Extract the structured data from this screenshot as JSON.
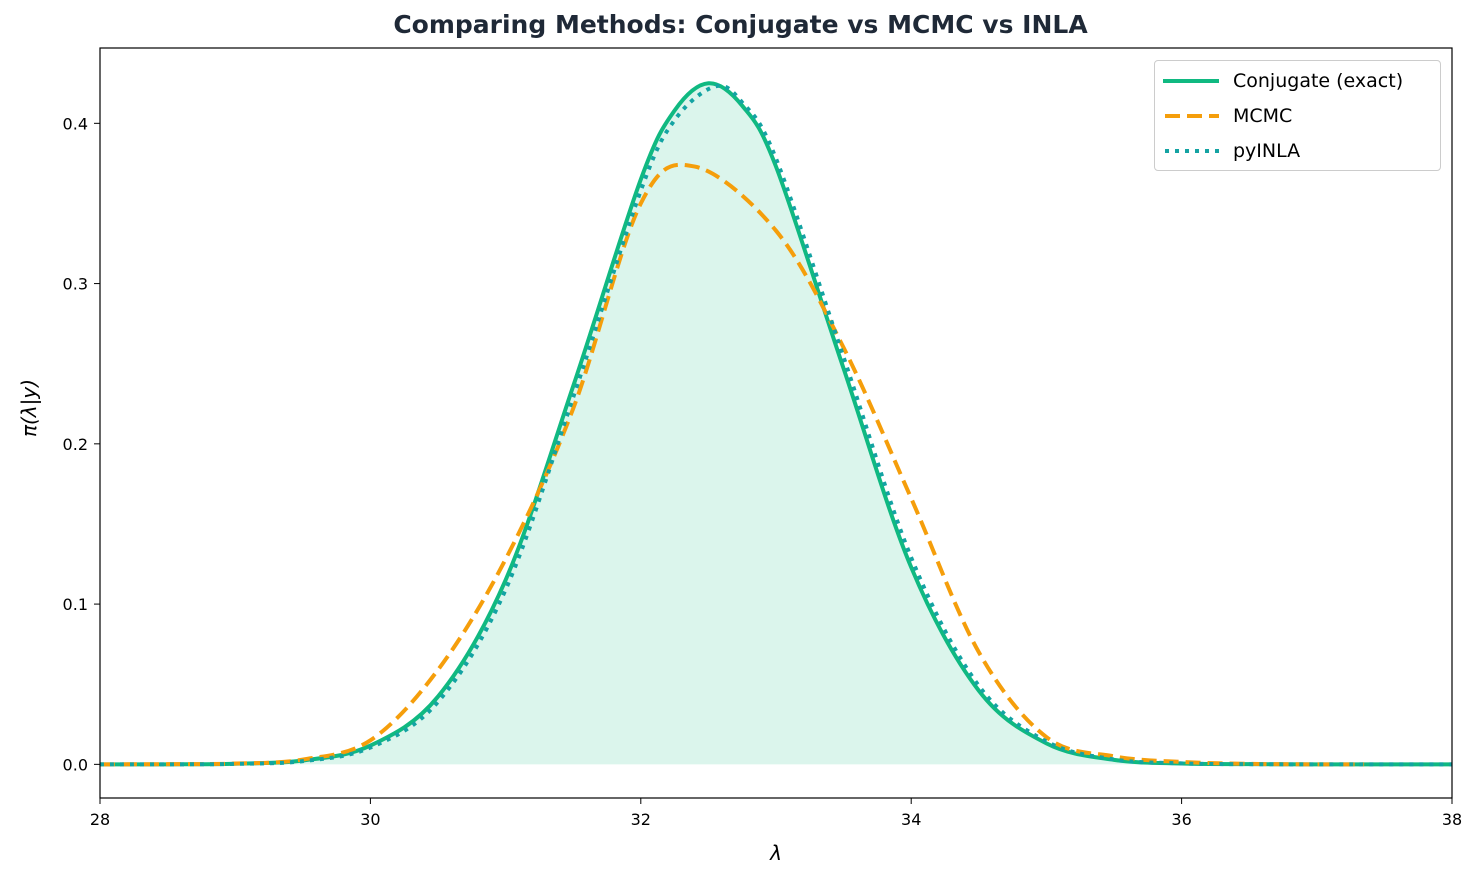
{
  "chart_data": {
    "type": "line",
    "title": "Comparing Methods: Conjugate vs MCMC vs INLA",
    "xlabel": "λ",
    "ylabel": "π(λ|y)",
    "xlim": [
      28,
      38
    ],
    "ylim": [
      -0.021,
      0.447
    ],
    "xticks": [
      28,
      30,
      32,
      34,
      36,
      38
    ],
    "yticks": [
      0.0,
      0.1,
      0.2,
      0.3,
      0.4
    ],
    "xtick_labels": [
      "28",
      "30",
      "32",
      "34",
      "36",
      "38"
    ],
    "ytick_labels": [
      "0.0",
      "0.1",
      "0.2",
      "0.3",
      "0.4"
    ],
    "grid": false,
    "legend_position": "top-right",
    "series": [
      {
        "name": "Conjugate (exact)",
        "style": "solid",
        "color": "#10b981",
        "fill": true,
        "x": [
          28,
          28.5,
          29,
          29.5,
          30,
          30.5,
          31,
          31.5,
          32,
          32.25,
          32.5,
          32.75,
          33,
          33.5,
          34,
          34.5,
          35,
          35.5,
          36,
          36.5,
          37,
          37.5,
          38
        ],
        "y": [
          0.0,
          0.0,
          0.0004,
          0.0024,
          0.0117,
          0.0423,
          0.115,
          0.236,
          0.365,
          0.408,
          0.425,
          0.411,
          0.373,
          0.247,
          0.123,
          0.046,
          0.0131,
          0.0028,
          0.0005,
          0.0001,
          0.0,
          0.0,
          0.0
        ]
      },
      {
        "name": "MCMC",
        "style": "dashed",
        "color": "#f59e0b",
        "fill": false,
        "x": [
          28,
          28.5,
          29,
          29.5,
          30,
          30.5,
          31,
          31.5,
          32,
          32.4,
          33,
          33.5,
          34,
          34.5,
          35,
          35.5,
          36,
          36.5,
          37,
          37.35
        ],
        "y": [
          0.0,
          0.0001,
          0.0005,
          0.003,
          0.015,
          0.059,
          0.128,
          0.222,
          0.35,
          0.373,
          0.333,
          0.26,
          0.166,
          0.07,
          0.017,
          0.005,
          0.0015,
          0.0003,
          0.0,
          0.0
        ]
      },
      {
        "name": "pyINLA",
        "style": "dotted",
        "color": "#14a3a3",
        "fill": false,
        "x": [
          28,
          28.5,
          29,
          29.5,
          30,
          30.5,
          31,
          31.5,
          32,
          32.25,
          32.55,
          32.75,
          33,
          33.5,
          34,
          34.5,
          35,
          35.5,
          36,
          36.5,
          37,
          37.5,
          38
        ],
        "y": [
          0.0,
          0.0,
          0.0003,
          0.002,
          0.0105,
          0.039,
          0.109,
          0.229,
          0.358,
          0.402,
          0.423,
          0.413,
          0.378,
          0.254,
          0.129,
          0.049,
          0.0143,
          0.0031,
          0.0006,
          0.0001,
          0.0,
          0.0,
          0.0
        ]
      }
    ]
  }
}
